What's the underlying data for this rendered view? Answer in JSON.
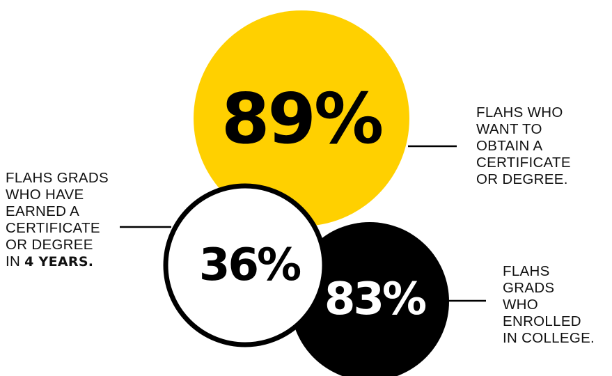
{
  "chart_data": {
    "type": "bubble",
    "bubbles": [
      {
        "id": "b89",
        "value": 89,
        "label_text": "89%",
        "fill": "#FFD000",
        "text_color": "#000000",
        "caption_lines": [
          "FLAHS WHO",
          "WANT TO",
          "OBTAIN A",
          "CERTIFICATE",
          "OR DEGREE."
        ]
      },
      {
        "id": "b83",
        "value": 83,
        "label_text": "83%",
        "fill": "#000000",
        "text_color": "#FFFFFF",
        "caption_lines": [
          "FLAHS",
          "GRADS",
          "WHO",
          "ENROLLED",
          "IN COLLEGE."
        ]
      },
      {
        "id": "b36",
        "value": 36,
        "label_text": "36%",
        "fill": "#FFFFFF",
        "stroke": "#000000",
        "text_color": "#000000",
        "caption_lines": [
          "FLAHS GRADS",
          "WHO HAVE",
          "EARNED A",
          "CERTIFICATE",
          "OR DEGREE"
        ],
        "caption_last_prefix": "IN ",
        "caption_last_emphasis": "4 YEARS."
      }
    ]
  }
}
